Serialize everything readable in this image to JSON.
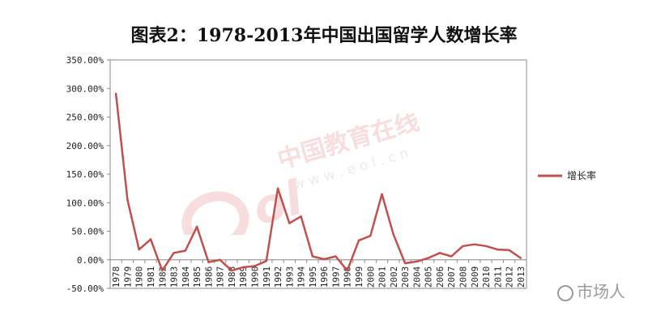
{
  "chart_data": {
    "type": "line",
    "title": "图表2：1978-2013年中国出国留学人数增长率",
    "xlabel": "",
    "ylabel": "",
    "ylim": [
      -50,
      350
    ],
    "yticks": [
      -50,
      0,
      50,
      100,
      150,
      200,
      250,
      300,
      350
    ],
    "ytick_labels": [
      "-50.00%",
      "0.00%",
      "50.00%",
      "100.00%",
      "150.00%",
      "200.00%",
      "250.00%",
      "300.00%",
      "350.00%"
    ],
    "grid": false,
    "legend": "right",
    "categories": [
      "1978",
      "1979",
      "1980",
      "1981",
      "1982",
      "1983",
      "1984",
      "1985",
      "1986",
      "1987",
      "1988",
      "1989",
      "1990",
      "1991",
      "1992",
      "1993",
      "1994",
      "1995",
      "1996",
      "1997",
      "1998",
      "1999",
      "2000",
      "2001",
      "2002",
      "2003",
      "2004",
      "2005",
      "2006",
      "2007",
      "2008",
      "2009",
      "2010",
      "2011",
      "2012",
      "2013"
    ],
    "series": [
      {
        "name": "增长率",
        "color": "#c0504d",
        "values": [
          291,
          105,
          18,
          36,
          -19,
          12,
          16,
          58,
          -4,
          0,
          -19,
          -13,
          -11,
          -2,
          125,
          64,
          76,
          6,
          1,
          6,
          -19,
          34,
          42,
          115,
          44,
          -6,
          -3,
          3,
          12,
          6,
          24,
          27,
          24,
          18,
          17,
          3
        ]
      }
    ]
  },
  "watermark": {
    "logo_text": "中国教育在线",
    "logo_url_text": "w w w . e o l . c n",
    "account": "市场人"
  }
}
